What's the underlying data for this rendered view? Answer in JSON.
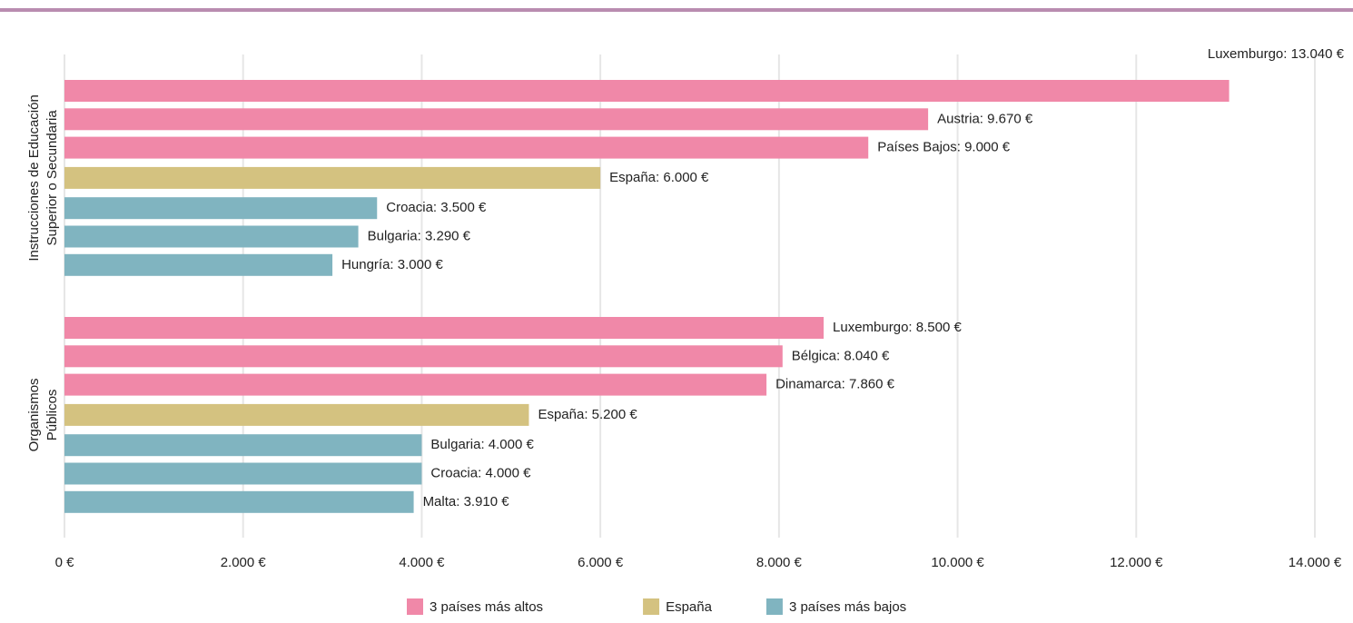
{
  "chart_data": {
    "type": "bar",
    "orientation": "horizontal",
    "groups": [
      [
        "Instrucciones de Educación",
        "Superior o Secundaria"
      ],
      [
        "Organismos",
        "Públicos"
      ]
    ],
    "series": [
      {
        "name": "3 países más altos",
        "color": "#f088a8",
        "values": [
          [
            13040,
            9670,
            9000
          ],
          [
            8500,
            8040,
            7860
          ]
        ],
        "value_labels": [
          [
            "Luxemburgo: 13.040 €",
            "Austria: 9.670 €",
            "Países Bajos: 9.000 €"
          ],
          [
            "Luxemburgo: 8.500 €",
            "Bélgica: 8.040 €",
            "Dinamarca: 7.860 €"
          ]
        ]
      },
      {
        "name": "España",
        "color": "#d4c280",
        "values": [
          [
            6000
          ],
          [
            5200
          ]
        ],
        "value_labels": [
          [
            "España: 6.000 €"
          ],
          [
            "España: 5.200 €"
          ]
        ]
      },
      {
        "name": "3 países más bajos",
        "color": "#80b4c0",
        "values": [
          [
            3500,
            3290,
            3000
          ],
          [
            4000,
            4000,
            3910
          ]
        ],
        "value_labels": [
          [
            "Croacia: 3.500 €",
            "Bulgaria: 3.290 €",
            "Hungría: 3.000 €"
          ],
          [
            "Bulgaria: 4.000 €",
            "Croacia: 4.000 €",
            "Malta: 3.910 €"
          ]
        ]
      }
    ],
    "xlim": [
      0,
      14000
    ],
    "xticks": [
      {
        "value": 0,
        "label": "0 €"
      },
      {
        "value": 2000,
        "label": "2.000 €"
      },
      {
        "value": 4000,
        "label": "4.000 €"
      },
      {
        "value": 6000,
        "label": "6.000 €"
      },
      {
        "value": 8000,
        "label": "8.000 €"
      },
      {
        "value": 10000,
        "label": "10.000 €"
      },
      {
        "value": 12000,
        "label": "12.000 €"
      },
      {
        "value": 14000,
        "label": "14.000 €"
      }
    ],
    "grid": true,
    "legend": "bottom"
  }
}
